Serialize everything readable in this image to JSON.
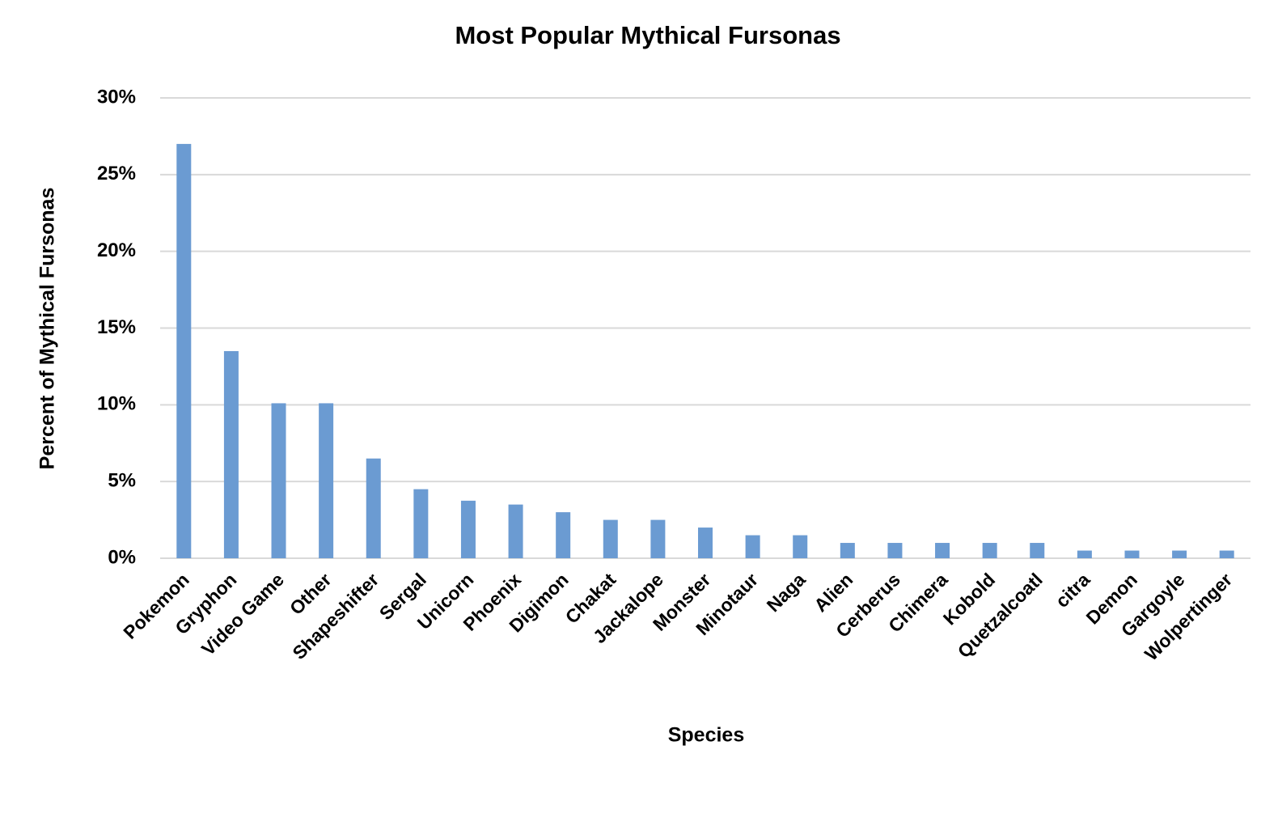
{
  "chart_data": {
    "type": "bar",
    "title": "Most Popular Mythical Fursonas",
    "x_label": "Species",
    "y_label": "Percent of Mythical Fursonas",
    "categories": [
      "Pokemon",
      "Gryphon",
      "Video Game",
      "Other",
      "Shapeshifter",
      "Sergal",
      "Unicorn",
      "Phoenix",
      "Digimon",
      "Chakat",
      "Jackalope",
      "Monster",
      "Minotaur",
      "Naga",
      "Alien",
      "Cerberus",
      "Chimera",
      "Kobold",
      "Quetzalcoatl",
      "citra",
      "Demon",
      "Gargoyle",
      "Wolpertinger"
    ],
    "values": [
      27,
      13.5,
      10.1,
      10.1,
      6.5,
      4.5,
      3.75,
      3.5,
      3,
      2.5,
      2.5,
      2,
      1.5,
      1.5,
      1,
      1,
      1,
      1,
      1,
      0.5,
      0.5,
      0.5,
      0.5
    ],
    "color": "#6b9bd2",
    "ylim": [
      0,
      30
    ],
    "yticks": [
      {
        "value": 0,
        "label": "0%"
      },
      {
        "value": 5,
        "label": "5%"
      },
      {
        "value": 10,
        "label": "10%"
      },
      {
        "value": 15,
        "label": "15%"
      },
      {
        "value": 20,
        "label": "20%"
      },
      {
        "value": 25,
        "label": "25%"
      },
      {
        "value": 30,
        "label": "30%"
      }
    ],
    "grid": true
  }
}
